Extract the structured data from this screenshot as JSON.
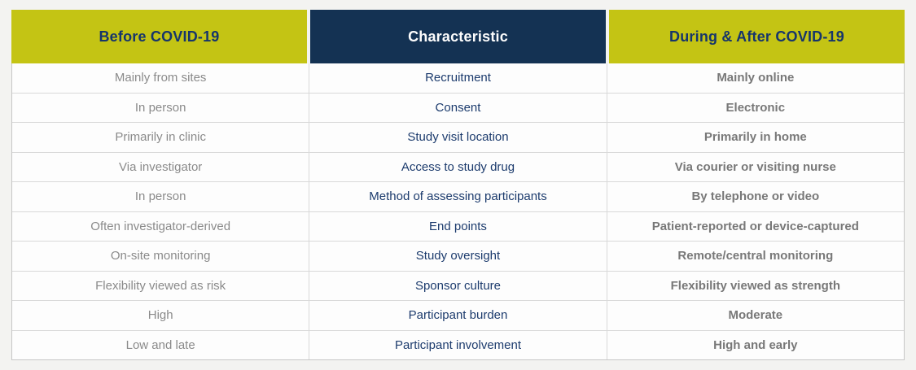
{
  "table": {
    "headers": [
      {
        "label": "Before COVID-19"
      },
      {
        "label": "Characteristic"
      },
      {
        "label": "During & After COVID-19"
      }
    ],
    "rows": [
      {
        "before": "Mainly from sites",
        "characteristic": "Recruitment",
        "after": "Mainly online"
      },
      {
        "before": "In person",
        "characteristic": "Consent",
        "after": "Electronic"
      },
      {
        "before": "Primarily in clinic",
        "characteristic": "Study visit location",
        "after": "Primarily in home"
      },
      {
        "before": "Via investigator",
        "characteristic": "Access to study drug",
        "after": "Via courier or visiting nurse"
      },
      {
        "before": "In person",
        "characteristic": "Method of assessing participants",
        "after": "By telephone or video"
      },
      {
        "before": "Often investigator-derived",
        "characteristic": "End points",
        "after": "Patient-reported or device-captured"
      },
      {
        "before": "On-site monitoring",
        "characteristic": "Study oversight",
        "after": "Remote/central monitoring"
      },
      {
        "before": "Flexibility viewed as risk",
        "characteristic": "Sponsor culture",
        "after": "Flexibility viewed as strength"
      },
      {
        "before": "High",
        "characteristic": "Participant burden",
        "after": "Moderate"
      },
      {
        "before": "Low and late",
        "characteristic": "Participant involvement",
        "after": "High and early"
      }
    ],
    "colors": {
      "header_yellow": "#c4c414",
      "header_navy_bg": "#143253",
      "header_text_navy": "#16356b",
      "header_text_white": "#fdfdfd",
      "characteristic_text": "#1c3b6d",
      "before_text": "#8a8a8a",
      "after_text": "#787878"
    }
  }
}
